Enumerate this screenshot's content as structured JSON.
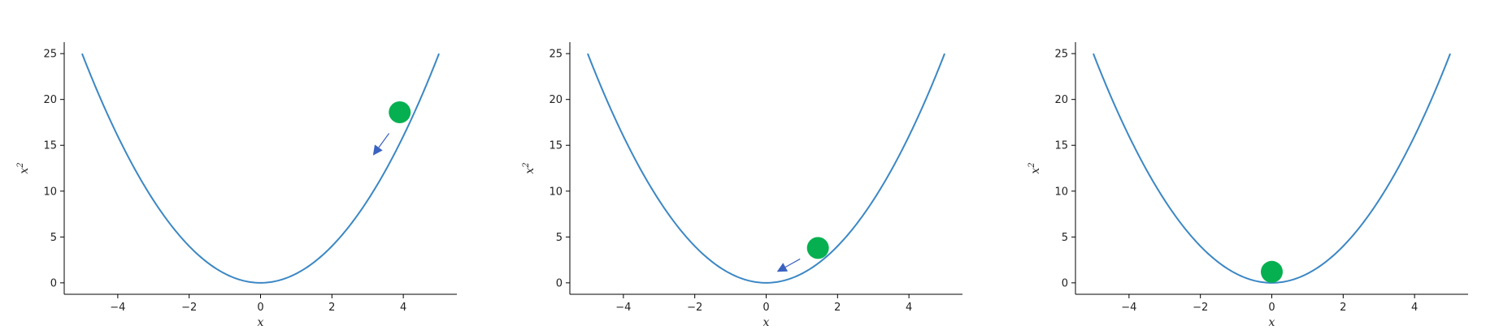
{
  "chart_data": [
    {
      "type": "line",
      "function": "x^2",
      "x_range": [
        -5,
        5
      ],
      "xlabel": "x",
      "ylabel": "x",
      "ylabel_superscript": "2",
      "xticks": [
        -4,
        -2,
        0,
        2,
        4
      ],
      "yticks": [
        0,
        5,
        10,
        15,
        20,
        25
      ],
      "xlim": [
        -5.5,
        5.5
      ],
      "ylim": [
        -1.25,
        26.25
      ],
      "grid": false,
      "series_color": "#3b87c4",
      "ball": {
        "x": 3.9,
        "y": 18.6,
        "color": "#06b050"
      },
      "arrow": {
        "from": [
          3.6,
          16.3
        ],
        "to": [
          3.15,
          13.9
        ],
        "color": "#3a62c0"
      }
    },
    {
      "type": "line",
      "function": "x^2",
      "x_range": [
        -5,
        5
      ],
      "xlabel": "x",
      "ylabel": "x",
      "ylabel_superscript": "2",
      "xticks": [
        -4,
        -2,
        0,
        2,
        4
      ],
      "yticks": [
        0,
        5,
        10,
        15,
        20,
        25
      ],
      "xlim": [
        -5.5,
        5.5
      ],
      "ylim": [
        -1.25,
        26.25
      ],
      "grid": false,
      "series_color": "#3b87c4",
      "ball": {
        "x": 1.45,
        "y": 3.8,
        "color": "#06b050"
      },
      "arrow": {
        "from": [
          0.95,
          2.6
        ],
        "to": [
          0.3,
          1.2
        ],
        "color": "#3a62c0"
      }
    },
    {
      "type": "line",
      "function": "x^2",
      "x_range": [
        -5,
        5
      ],
      "xlabel": "x",
      "ylabel": "x",
      "ylabel_superscript": "2",
      "xticks": [
        -4,
        -2,
        0,
        2,
        4
      ],
      "yticks": [
        0,
        5,
        10,
        15,
        20,
        25
      ],
      "xlim": [
        -5.5,
        5.5
      ],
      "ylim": [
        -1.25,
        26.25
      ],
      "grid": false,
      "series_color": "#3b87c4",
      "ball": {
        "x": 0,
        "y": 1.2,
        "color": "#06b050"
      },
      "arrow": null
    }
  ]
}
